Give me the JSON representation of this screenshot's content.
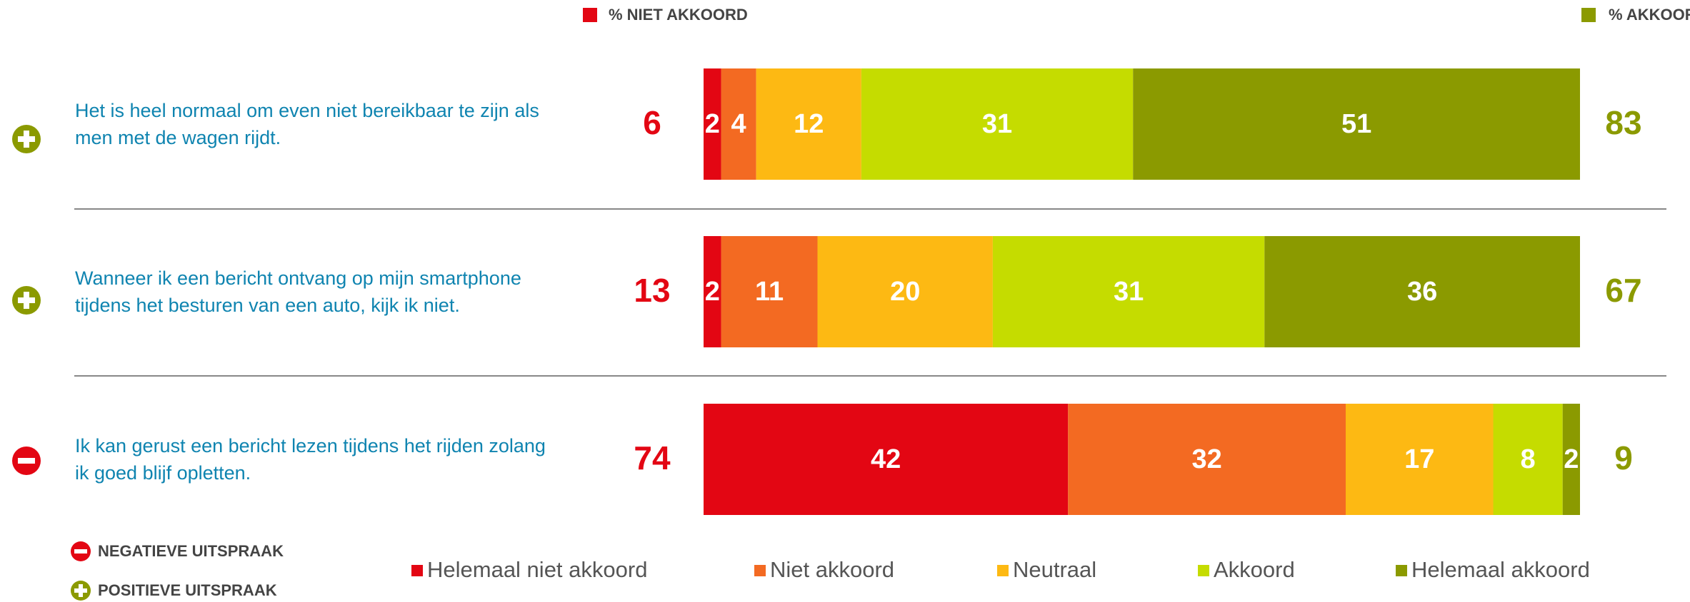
{
  "chart_data": {
    "type": "stacked-bar-horizontal",
    "categories": [
      [
        "Het is heel normaal om even niet bereikbaar te zijn als",
        "men met de wagen rijdt."
      ],
      [
        "Wanneer ik een bericht ontvang op mijn smartphone",
        "tijdens het besturen van een auto, kijk ik niet."
      ],
      [
        "Ik kan gerust een bericht lezen tijdens het rijden zolang",
        "ik goed blijf opletten."
      ]
    ],
    "series": [
      {
        "name": "Helemaal niet akkoord",
        "color": "#e30613",
        "values": [
          2,
          2,
          42
        ]
      },
      {
        "name": "Niet akkoord",
        "color": "#f36a22",
        "values": [
          4,
          11,
          32
        ]
      },
      {
        "name": "Neutraal",
        "color": "#fdb913",
        "values": [
          12,
          20,
          17
        ]
      },
      {
        "name": "Akkoord",
        "color": "#c5dc00",
        "values": [
          31,
          31,
          8
        ]
      },
      {
        "name": "Helemaal akkoord",
        "color": "#8b9a00",
        "values": [
          51,
          36,
          2
        ]
      }
    ],
    "disagree": {
      "label": "% NIET AKKOORD",
      "color": "#e30613",
      "values": [
        6,
        13,
        74
      ]
    },
    "agree": {
      "label": "% AKKOORD",
      "color": "#8b9a00",
      "values": [
        83,
        67,
        9
      ]
    },
    "icon_legend": {
      "negative": "NEGATIEVE UITSPRAAK",
      "positive": "POSITIEVE UITSPRAAK"
    }
  }
}
